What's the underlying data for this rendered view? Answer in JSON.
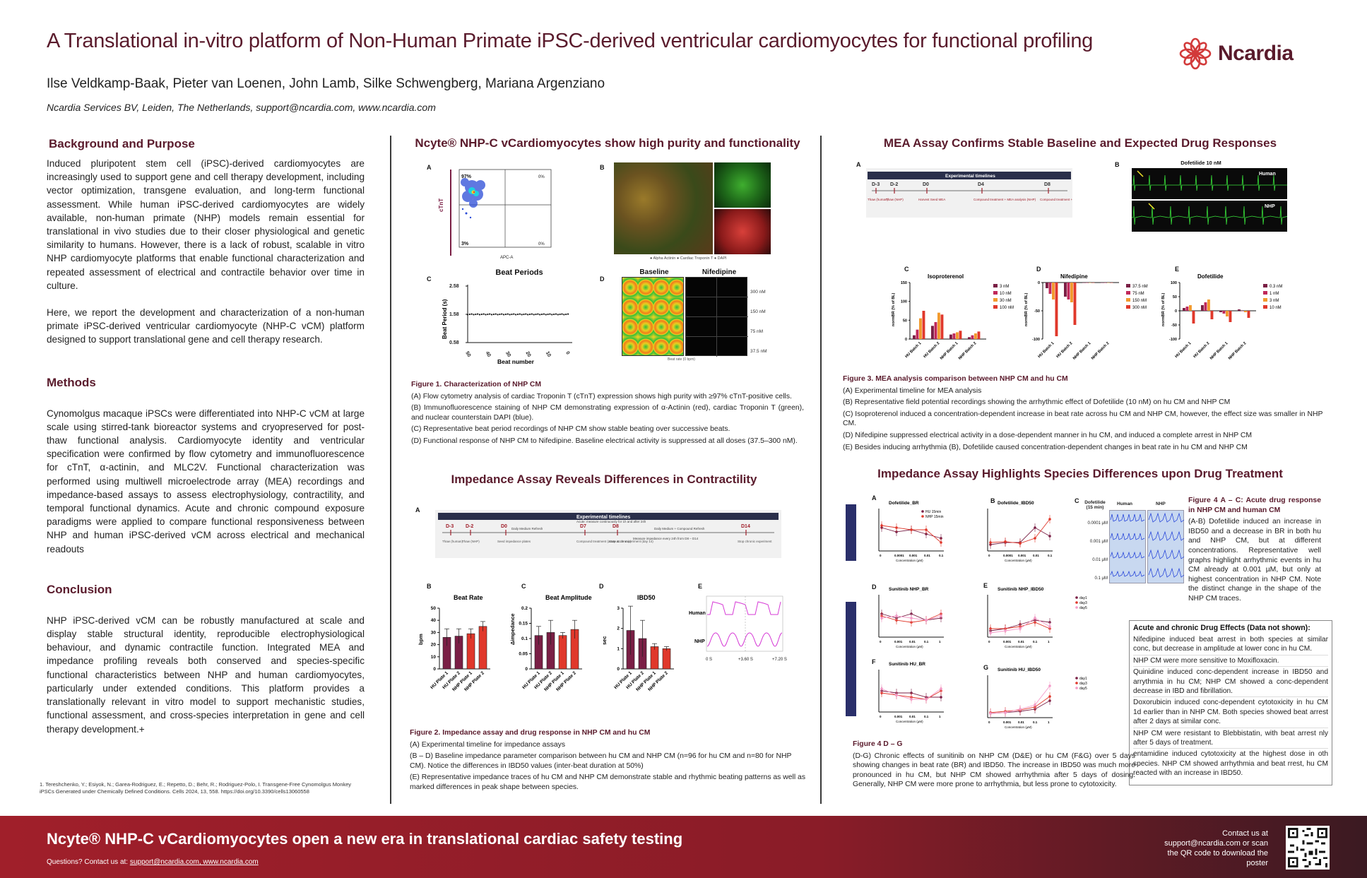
{
  "header": {
    "title": "A Translational in-vitro platform of Non-Human Primate iPSC-derived ventricular cardiomyocytes for functional profiling",
    "authors": "Ilse Veldkamp-Baak, Pieter van Loenen, John Lamb, Silke Schwengberg, Mariana Argenziano",
    "affiliation": "Ncardia Services BV, Leiden, The Netherlands, support@ncardia.com, www.ncardia.com",
    "logo_text": "Ncardia",
    "logo_icon": "flower-logo-icon"
  },
  "left": {
    "background_heading": "Background and Purpose",
    "background_p1": "Induced pluripotent stem cell (iPSC)-derived cardiomyocytes are increasingly used to support gene and cell therapy development, including vector optimization, transgene evaluation, and long-term functional assessment. While human iPSC-derived cardiomyocytes are widely available, non-human primate (NHP) models remain essential for translational in vivo studies due to their closer physiological and genetic similarity to humans. However, there is a lack of robust, scalable in vitro NHP cardiomyocyte platforms that enable functional characterization and repeated assessment of electrical and contractile behavior over time in culture.",
    "background_p2": "Here, we report the development and characterization of a non-human primate iPSC-derived ventricular cardiomyocyte (NHP-C vCM) platform designed to support translational gene and cell therapy research.",
    "methods_heading": "Methods",
    "methods_p": "Cynomolgus macaque iPSCs were differentiated into NHP-C vCM at large scale using stirred-tank bioreactor systems and cryopreserved for post-thaw functional analysis. Cardiomyocyte identity and ventricular specification were confirmed by flow cytometry and immunofluorescence for cTnT, α-actinin, and MLC2V. Functional characterization was performed using multiwell microelectrode array (MEA) recordings and impedance-based assays to assess electrophysiology, contractility, and temporal functional dynamics. Acute and chronic compound exposure paradigms were applied to compare functional responsiveness between NHP and human iPSC-derived vCM across electrical and mechanical readouts",
    "conclusion_heading": "Conclusion",
    "conclusion_p": "NHP iPSC-derived vCM can be robustly manufactured at scale and display stable structural identity, reproducible electrophysiological behaviour, and dynamic contractile function. Integrated MEA and impedance profiling reveals both conserved and species-specific functional characteristics between NHP and human cardiomyocytes, particularly under extended conditions. This platform provides a translationally relevant in vitro model to support mechanistic studies, functional assessment, and cross-species interpretation in gene and cell therapy development.+",
    "reference": "1. Tereshchenko, Y.; Esiyok, N.; Garea-Rodriguez, E.; Repetto, D.; Behr, R.; Rodriguez-Polo, I. Transgene-Free Cynomolgus Monkey iPSCs Generated under Chemically Defined Conditions. Cells 2024, 13, 558. https://doi.org/10.3390/cells13060558"
  },
  "fig1": {
    "heading": "Ncyte® NHP-C vCardiomyocytes show high purity and functionality",
    "label_a": "A",
    "label_b": "B",
    "label_c": "C",
    "label_d": "D",
    "flow": {
      "ylabel": "cTnT",
      "xlabel": "APC-A",
      "q_tl": "97%",
      "q_tr": "0%",
      "q_bl": "3%",
      "q_br": "0%"
    },
    "if_legend": "● Alpha Actinin  ● Cardiac Troponin T  ● DAPI",
    "beat_title": "Beat Periods",
    "beat_ylabel": "Beat Period (s)",
    "beat_xlabel": "Beat number",
    "beat_yticks": [
      "2.58",
      "1.58",
      "0.58"
    ],
    "beat_xticks": [
      "50",
      "40",
      "30",
      "20",
      "10",
      "0"
    ],
    "nif_col1": "Baseline",
    "nif_col2": "Nifedipine",
    "nif_rows": [
      "300 nM",
      "150 nM",
      "75 nM",
      "37.5 nM"
    ],
    "nif_scale": "Beat rate (0 bpm)",
    "caption_title": "Figure 1. Characterization of NHP CM",
    "caption_a": "(A) Flow cytometry analysis of cardiac Troponin T (cTnT) expression shows high purity with ≥97% cTnT-positive cells.",
    "caption_b": "(B) Immunofluorescence staining of NHP CM demonstrating expression of α-Actinin (red), cardiac Troponin T (green), and nuclear counterstain DAPI (blue).",
    "caption_c": "(C) Representative beat period recordings of NHP CM show stable beating over successive beats.",
    "caption_d": "(D) Functional response of NHP CM to Nifedipine. Baseline electrical activity is suppressed at all doses (37.5–300 nM)."
  },
  "fig2": {
    "heading": "Impedance Assay Reveals Differences in Contractility",
    "label_a": "A",
    "label_b": "B",
    "label_c": "C",
    "label_d": "D",
    "label_e": "E",
    "timeline_title": "Experimental timelines",
    "timeline_days": [
      "D-3",
      "D-2",
      "D0",
      "D7",
      "D8",
      "D14"
    ],
    "timeline_sub": [
      "Thaw (human)",
      "Thaw (NHP)",
      "Seed impedance plates",
      "Compound treatment (acute & chronic)",
      "Stop acute experiment (day 14)",
      "Stop chronic experiment"
    ],
    "timeline_notes": [
      "Daily Medium Refresh",
      "Acute: measure continuously for 1h and after 24h",
      "Daily Medium + Compound Refresh",
      "Measure impedance every 24h from D8 – D14"
    ],
    "br_title": "Beat Rate",
    "br_ylabel": "bpm",
    "amp_title": "Beat Amplitude",
    "amp_ylabel": "Δimpedance",
    "ibd_title": "IBD50",
    "ibd_ylabel": "sec",
    "categories": [
      "HU Plate 1",
      "HU Plate 2",
      "NHP Plate 1",
      "NHP Plate 2"
    ],
    "trace_human": "Human",
    "trace_nhp": "NHP",
    "trace_ticks": [
      "0 S",
      "+3.60 S",
      "+7.20 S"
    ],
    "caption_title": "Figure 2. Impedance assay and drug response in NHP CM and hu CM",
    "caption_a": "(A) Experimental timeline for impedance assays",
    "caption_bd": "(B – D) Baseline impedance parameter comparison between hu CM and NHP CM (n=96 for hu CM and n=80 for NHP CM). Notice the differences in IBD50 values (inter-beat duration at 50%)",
    "caption_e": "(E) Representative impedance traces of hu CM and NHP CM demonstrate stable and rhythmic beating patterns as well as marked differences in peak shape between species."
  },
  "fig3": {
    "heading": "MEA Assay Confirms Stable Baseline and Expected Drug Responses",
    "label_a": "A",
    "label_b": "B",
    "label_c": "C",
    "label_d": "D",
    "label_e": "E",
    "timeline_title": "Experimental timelines",
    "timeline_days": [
      "D-3",
      "D-2",
      "D0",
      "D4",
      "D8"
    ],
    "timeline_sub": [
      "Thaw (human)",
      "Thaw (NHP)",
      "Harvest Seed MEA",
      "Compound treatment + MEA analysis (NHP)",
      "Compound treatment + MEA analysis (Human)"
    ],
    "fp_title": "Dofetilide 10 nM",
    "fp_human": "Human",
    "fp_nhp": "NHP",
    "iso_title": "Isoproterenol",
    "nif_title": "Nifedipine",
    "dof_title": "Dofetilide",
    "ylabel": "normBR (% of BL)",
    "categories": [
      "HU Batch 1",
      "HU Batch 2",
      "NHP Batch 1",
      "NHP Batch 2"
    ],
    "iso_legend": [
      "3 nM",
      "10 nM",
      "30 nM",
      "100 nM"
    ],
    "nif_legend": [
      "37.5 nM",
      "75 nM",
      "150 nM",
      "300 nM"
    ],
    "dof_legend": [
      "0.3 nM",
      "1 nM",
      "3 nM",
      "10 nM"
    ],
    "caption_title": "Figure 3. MEA analysis comparison between NHP CM and hu CM",
    "caption_a": "(A) Experimental timeline for MEA analysis",
    "caption_b": "(B) Representative field potential recordings showing the arrhythmic effect of Dofetilide (10 nM) on hu CM and NHP CM",
    "caption_c": "(C) Isoproterenol induced a concentration-dependent increase in beat rate across hu CM and NHP CM, however, the effect size was smaller in NHP CM.",
    "caption_d": "(D) Nifedipine suppressed electrical activity in a dose-dependent manner in hu CM, and induced a complete arrest in NHP CM",
    "caption_e": "(E) Besides inducing arrhythmia (B), Dofetilide caused concentration-dependent changes in beat rate in hu CM and NHP CM"
  },
  "fig4": {
    "heading": "Impedance Assay Highlights Species Differences upon Drug Treatment",
    "label_a": "A",
    "label_b": "B",
    "label_c": "C",
    "label_d": "D",
    "label_e": "E",
    "label_f": "F",
    "label_g": "G",
    "acute": "Acute",
    "chronic": "Chronic",
    "a_title": "Dofetilide_BR",
    "b_title": "Dofetilide_IBD50",
    "a_legend": [
      "HU 15min",
      "NHP 15min"
    ],
    "conc_label": "Concentration (µM)",
    "conc_ticks": [
      "0",
      "0.0001",
      "0.001",
      "0.01",
      "0.1"
    ],
    "c_title": "Dofetilide (15 min)",
    "c_human": "Human",
    "c_nhp": "NHP",
    "c_rows": [
      "0.0001 µM",
      "0.001 µM",
      "0.01 µM",
      "0.1 µM"
    ],
    "d_title": "Sunitinib NHP_BR",
    "e_title": "Sunitinib NHP_IBD50",
    "f_title": "Sunitinib HU_BR",
    "g_title": "Sunitinib HU_IBD50",
    "day_legend_e": [
      "day1",
      "day3",
      "day5"
    ],
    "day_legend_g": [
      "day1",
      "day3",
      "day5"
    ],
    "chronic_ticks": [
      "0",
      "0.001",
      "0.01",
      "0.1",
      "1"
    ],
    "right_caption_title": "Figure 4 A – C: Acute drug response in NHP CM and human CM",
    "right_caption": "(A-B) Dofetilide induced an increase in IBD50 and a decrease in BR in both hu and NHP CM, but at different concentrations. Representative well graphs highlight arrhythmic events in hu CM already at 0.001 µM, but only at highest concentration in NHP CM. Note the distinct change in the shape of the NHP CM traces.",
    "box_title": "Acute and chronic Drug Effects (Data not shown):",
    "box_items": [
      "Nifedipine induced beat arrest in both species at similar conc, but decrease in amplitude at lower conc in hu CM.",
      "NHP CM were more sensitive to Moxifloxacin.",
      "Quinidine induced conc-dependent increase in IBD50 and arrythmia in hu CM; NHP CM showed a conc-dependent decrease in IBD and fibrillation.",
      "Doxorubicin induced conc-dependent cytotoxicity in hu CM 1d earlier than in NHP CM. Both species showed beat arrest after 2 days at similar conc.",
      "NHP CM were resistant to Blebbistatin, with beat arrest nly after 5 days of treatment.",
      "entamidine induced cytotoxicity at the highest dose in oth species. NHP CM showed arrhythmia and beat rrest, hu CM reacted with an increase in IBD50."
    ],
    "bottom_caption_title": "Figure 4 D – G",
    "bottom_caption": "(D-G) Chronic effects of sunitinib on NHP CM (D&E) or hu CM (F&G) over 5 days showing changes in beat rate (BR) and IBD50. The increase in IBD50 was much more pronounced in hu CM, but NHP CM showed arrhythmia after 5 days of dosing.  Generally, NHP CM were more prone to arrhythmia, but less prone to cytotoxicity."
  },
  "footer": {
    "title": "Ncyte® NHP-C vCardiomyocytes open a new era in translational cardiac safety testing",
    "contact_prefix": "Questions? Contact us at: ",
    "contact_link": "support@ncardia.com, www.ncardia.com",
    "right_text": "Contact us at support@ncardia.com or scan the QR code to download the poster",
    "qr_icon": "qr-code-icon"
  },
  "chart_data": [
    {
      "type": "scatter",
      "title": "Beat Periods",
      "xlabel": "Beat number",
      "ylabel": "Beat Period (s)",
      "xlim": [
        50,
        0
      ],
      "ylim": [
        0.58,
        2.58
      ],
      "series": [
        {
          "y_constant": 1.58
        }
      ]
    },
    {
      "type": "bar",
      "title": "Beat Rate",
      "ylabel": "bpm",
      "ylim": [
        0,
        50
      ],
      "categories": [
        "HU Plate 1",
        "HU Plate 2",
        "NHP Plate 1",
        "NHP Plate 2"
      ],
      "values": [
        26,
        27,
        29,
        35
      ],
      "errors": [
        7,
        6,
        4,
        4
      ],
      "colors": [
        "#7a1f45",
        "#7a1f45",
        "#e0382b",
        "#e0382b"
      ]
    },
    {
      "type": "bar",
      "title": "Beat Amplitude",
      "ylabel": "Δimpedance",
      "ylim": [
        0,
        0.2
      ],
      "categories": [
        "HU Plate 1",
        "HU Plate 2",
        "NHP Plate 1",
        "NHP Plate 2"
      ],
      "values": [
        0.11,
        0.12,
        0.11,
        0.13
      ],
      "errors": [
        0.03,
        0.04,
        0.01,
        0.03
      ],
      "colors": [
        "#7a1f45",
        "#7a1f45",
        "#e0382b",
        "#e0382b"
      ]
    },
    {
      "type": "bar",
      "title": "IBD50",
      "ylabel": "sec",
      "ylim": [
        0,
        3
      ],
      "categories": [
        "HU Plate 1",
        "HU Plate 2",
        "NHP Plate 1",
        "NHP Plate 2"
      ],
      "values": [
        1.9,
        1.5,
        1.1,
        1.0
      ],
      "errors": [
        1.2,
        0.9,
        0.15,
        0.1
      ],
      "colors": [
        "#7a1f45",
        "#7a1f45",
        "#e0382b",
        "#e0382b"
      ]
    },
    {
      "type": "bar",
      "title": "Isoproterenol",
      "ylabel": "normBR (% of BL)",
      "ylim": [
        0,
        150
      ],
      "categories": [
        "HU Batch 1",
        "HU Batch 2",
        "NHP Batch 1",
        "NHP Batch 2"
      ],
      "series": [
        {
          "name": "3 nM",
          "values": [
            10,
            35,
            12,
            5
          ],
          "color": "#7a1f45"
        },
        {
          "name": "10 nM",
          "values": [
            25,
            45,
            15,
            10
          ],
          "color": "#c0285a"
        },
        {
          "name": "30 nM",
          "values": [
            55,
            70,
            18,
            15
          ],
          "color": "#f29a2e"
        },
        {
          "name": "100 nM",
          "values": [
            75,
            65,
            22,
            20
          ],
          "color": "#e0382b"
        }
      ]
    },
    {
      "type": "bar",
      "title": "Nifedipine",
      "ylabel": "normBR (% of BL)",
      "ylim": [
        -100,
        0
      ],
      "categories": [
        "HU Batch 1",
        "HU Batch 2",
        "NHP Batch 1",
        "NHP Batch 2"
      ],
      "series": [
        {
          "name": "37.5 nM",
          "values": [
            -10,
            -25,
            0,
            0
          ],
          "color": "#7a1f45"
        },
        {
          "name": "75 nM",
          "values": [
            -20,
            -30,
            0,
            0
          ],
          "color": "#c0285a"
        },
        {
          "name": "150 nM",
          "values": [
            -30,
            -35,
            0,
            0
          ],
          "color": "#f29a2e"
        },
        {
          "name": "300 nM",
          "values": [
            -95,
            -75,
            0,
            0
          ],
          "color": "#e0382b"
        }
      ]
    },
    {
      "type": "bar",
      "title": "Dofetilide",
      "ylabel": "normBR (% of BL)",
      "ylim": [
        -100,
        100
      ],
      "categories": [
        "HU Batch 1",
        "HU Batch 2",
        "NHP Batch 1",
        "NHP Batch 2"
      ],
      "series": [
        {
          "name": "0.3 nM",
          "values": [
            10,
            20,
            -5,
            5
          ],
          "color": "#7a1f45"
        },
        {
          "name": "1 nM",
          "values": [
            15,
            30,
            -10,
            0
          ],
          "color": "#c0285a"
        },
        {
          "name": "3 nM",
          "values": [
            20,
            40,
            -20,
            -5
          ],
          "color": "#f29a2e"
        },
        {
          "name": "10 nM",
          "values": [
            -45,
            -30,
            -40,
            -25
          ],
          "color": "#e0382b"
        }
      ]
    }
  ]
}
